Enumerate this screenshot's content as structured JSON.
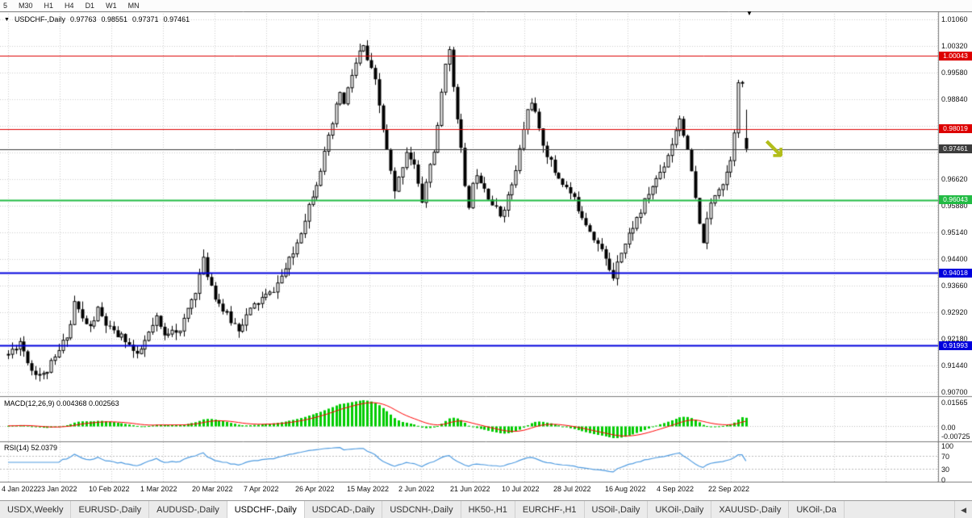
{
  "toolbar": {
    "timeframes": [
      "5",
      "M30",
      "H1",
      "H4",
      "D1",
      "W1",
      "MN"
    ]
  },
  "header": {
    "dropdown_icon": "▼",
    "symbol": "USDCHF-,Daily",
    "open": "0.97763",
    "high": "0.98551",
    "low": "0.97371",
    "close": "0.97461"
  },
  "main_pane": {
    "marker_icon": "▼",
    "arrow_icon": "↘",
    "arrow_color": "#b2bd1a"
  },
  "price_axis": {
    "labels": [
      "1.01060",
      "1.00320",
      "0.99580",
      "0.98840",
      "0.98100",
      "0.97360",
      "0.96620",
      "0.95880",
      "0.95140",
      "0.94400",
      "0.93660",
      "0.92920",
      "0.92180",
      "0.91440",
      "0.90700"
    ]
  },
  "levels": [
    {
      "price": "1.00043",
      "value": 1.00043,
      "color": "#dd0000",
      "width": 1
    },
    {
      "price": "0.98019",
      "value": 0.98019,
      "color": "#dd0000",
      "width": 1
    },
    {
      "price": "0.97461",
      "value": 0.97461,
      "color": "#3c3c3c",
      "width": 1
    },
    {
      "price": "0.96043",
      "value": 0.96043,
      "color": "#22bb44",
      "width": 2
    },
    {
      "price": "0.94018",
      "value": 0.94018,
      "color": "#0000dd",
      "width": 2
    },
    {
      "price": "0.91993",
      "value": 0.91993,
      "color": "#0000dd",
      "width": 2
    }
  ],
  "macd_pane": {
    "header": "MACD(12,26,9) 0.004368 0.002563",
    "axis_top": "0.01565",
    "axis_zero": "0.00",
    "axis_bottom": "-0.00725"
  },
  "rsi_pane": {
    "header": "RSI(14) 52.0379",
    "axis_labels": [
      "100",
      "70",
      "30",
      "0"
    ]
  },
  "date_axis": {
    "labels": [
      "4 Jan 2022",
      "23 Jan 2022",
      "10 Feb 2022",
      "1 Mar 2022",
      "20 Mar 2022",
      "7 Apr 2022",
      "26 Apr 2022",
      "15 May 2022",
      "2 Jun 2022",
      "21 Jun 2022",
      "10 Jul 2022",
      "28 Jul 2022",
      "16 Aug 2022",
      "4 Sep 2022",
      "22 Sep 2022"
    ]
  },
  "tabbar": {
    "tabs": [
      {
        "label": "USDX,Weekly",
        "active": false
      },
      {
        "label": "EURUSD-,Daily",
        "active": false
      },
      {
        "label": "AUDUSD-,Daily",
        "active": false
      },
      {
        "label": "USDCHF-,Daily",
        "active": true
      },
      {
        "label": "USDCAD-,Daily",
        "active": false
      },
      {
        "label": "USDCNH-,Daily",
        "active": false
      },
      {
        "label": "HK50-,H1",
        "active": false
      },
      {
        "label": "EURCHF-,H1",
        "active": false
      },
      {
        "label": "USOil-,Daily",
        "active": false
      },
      {
        "label": "UKOil-,Daily",
        "active": false
      },
      {
        "label": "XAUUSD-,Daily",
        "active": false
      },
      {
        "label": "UKOil-,Da",
        "active": false
      }
    ],
    "scroll_icon": "◀"
  },
  "chart_data": {
    "type": "candlestick",
    "symbol": "USDCHF",
    "timeframe": "Daily",
    "title": "USDCHF-,Daily",
    "x_tick_labels": [
      "4 Jan 2022",
      "23 Jan 2022",
      "10 Feb 2022",
      "1 Mar 2022",
      "20 Mar 2022",
      "7 Apr 2022",
      "26 Apr 2022",
      "15 May 2022",
      "2 Jun 2022",
      "21 Jun 2022",
      "10 Jul 2022",
      "28 Jul 2022",
      "16 Aug 2022",
      "4 Sep 2022",
      "22 Sep 2022"
    ],
    "price_axis_ticks": [
      1.0106,
      1.0032,
      0.9958,
      0.9884,
      0.981,
      0.9736,
      0.9662,
      0.9588,
      0.9514,
      0.944,
      0.9366,
      0.9292,
      0.9218,
      0.9144,
      0.907
    ],
    "ylim": [
      0.9068,
      1.0129
    ],
    "n_candles": 190,
    "last_candle": {
      "open": 0.97763,
      "high": 0.98551,
      "low": 0.97371,
      "close": 0.97461
    },
    "horizontal_levels": [
      1.00043,
      0.98019,
      0.97461,
      0.96043,
      0.94018,
      0.91993
    ],
    "price_path_anchors": [
      [
        0,
        0.9175
      ],
      [
        3,
        0.9212
      ],
      [
        6,
        0.9132
      ],
      [
        9,
        0.9116
      ],
      [
        12,
        0.9162
      ],
      [
        14,
        0.9206
      ],
      [
        16,
        0.9258
      ],
      [
        17,
        0.9322
      ],
      [
        19,
        0.9272
      ],
      [
        21,
        0.9248
      ],
      [
        23,
        0.9298
      ],
      [
        25,
        0.9258
      ],
      [
        27,
        0.9232
      ],
      [
        30,
        0.9218
      ],
      [
        33,
        0.9166
      ],
      [
        36,
        0.9232
      ],
      [
        38,
        0.9272
      ],
      [
        40,
        0.9224
      ],
      [
        42,
        0.9252
      ],
      [
        44,
        0.9234
      ],
      [
        46,
        0.93
      ],
      [
        48,
        0.9355
      ],
      [
        50,
        0.9435
      ],
      [
        51,
        0.9398
      ],
      [
        53,
        0.9338
      ],
      [
        55,
        0.9298
      ],
      [
        57,
        0.9268
      ],
      [
        59,
        0.9248
      ],
      [
        61,
        0.9282
      ],
      [
        63,
        0.931
      ],
      [
        65,
        0.933
      ],
      [
        67,
        0.9342
      ],
      [
        69,
        0.9372
      ],
      [
        71,
        0.9412
      ],
      [
        73,
        0.9455
      ],
      [
        75,
        0.952
      ],
      [
        77,
        0.959
      ],
      [
        79,
        0.9655
      ],
      [
        81,
        0.973
      ],
      [
        83,
        0.9815
      ],
      [
        85,
        0.9905
      ],
      [
        86,
        0.9868
      ],
      [
        88,
        0.9952
      ],
      [
        90,
        1.0012
      ],
      [
        91,
        1.0028
      ],
      [
        92,
        0.9992
      ],
      [
        94,
        0.993
      ],
      [
        96,
        0.98
      ],
      [
        98,
        0.968
      ],
      [
        99,
        0.9622
      ],
      [
        100,
        0.9662
      ],
      [
        102,
        0.9742
      ],
      [
        104,
        0.97
      ],
      [
        105,
        0.9642
      ],
      [
        106,
        0.9602
      ],
      [
        107,
        0.9652
      ],
      [
        108,
        0.9702
      ],
      [
        109,
        0.9742
      ],
      [
        110,
        0.9802
      ],
      [
        111,
        0.9902
      ],
      [
        112,
        0.9992
      ],
      [
        113,
        1.0012
      ],
      [
        114,
        0.9922
      ],
      [
        115,
        0.984
      ],
      [
        116,
        0.9742
      ],
      [
        117,
        0.9632
      ],
      [
        118,
        0.9592
      ],
      [
        119,
        0.9642
      ],
      [
        120,
        0.9682
      ],
      [
        122,
        0.9642
      ],
      [
        124,
        0.9592
      ],
      [
        126,
        0.9562
      ],
      [
        128,
        0.9612
      ],
      [
        130,
        0.9682
      ],
      [
        131,
        0.9742
      ],
      [
        132,
        0.9802
      ],
      [
        133,
        0.9852
      ],
      [
        134,
        0.9882
      ],
      [
        135,
        0.9842
      ],
      [
        136,
        0.9792
      ],
      [
        138,
        0.9732
      ],
      [
        140,
        0.9682
      ],
      [
        142,
        0.9652
      ],
      [
        144,
        0.9622
      ],
      [
        146,
        0.9582
      ],
      [
        148,
        0.9542
      ],
      [
        150,
        0.9502
      ],
      [
        152,
        0.9462
      ],
      [
        154,
        0.9412
      ],
      [
        155,
        0.9392
      ],
      [
        156,
        0.9442
      ],
      [
        158,
        0.9482
      ],
      [
        160,
        0.9532
      ],
      [
        162,
        0.9572
      ],
      [
        164,
        0.9622
      ],
      [
        166,
        0.9662
      ],
      [
        168,
        0.9702
      ],
      [
        170,
        0.9762
      ],
      [
        171,
        0.9802
      ],
      [
        172,
        0.9832
      ],
      [
        173,
        0.9792
      ],
      [
        174,
        0.9732
      ],
      [
        175,
        0.9682
      ],
      [
        176,
        0.9602
      ],
      [
        177,
        0.9532
      ],
      [
        178,
        0.9492
      ],
      [
        179,
        0.9542
      ],
      [
        180,
        0.9592
      ],
      [
        181,
        0.9622
      ],
      [
        182,
        0.9642
      ],
      [
        183,
        0.9652
      ],
      [
        184,
        0.9682
      ],
      [
        185,
        0.9722
      ],
      [
        186,
        0.9802
      ],
      [
        187,
        0.9922
      ],
      [
        188,
        0.9932
      ],
      [
        189,
        0.978
      ]
    ],
    "macd": {
      "fast": 12,
      "slow": 26,
      "signal": 9,
      "current_macd": 0.004368,
      "current_signal": 0.002563,
      "axis_range": [
        -0.00725,
        0.01565
      ]
    },
    "rsi": {
      "period": 14,
      "current": 52.0379,
      "levels": [
        70,
        30
      ],
      "axis_range": [
        0,
        100
      ]
    },
    "indicator_colors": {
      "macd_histogram": "#00cc00",
      "macd_signal": "#ff0000",
      "rsi_line": "#4f9be0"
    },
    "candle_colors": {
      "bull_fill": "#ffffff",
      "bear_fill": "#000000",
      "outline": "#000000"
    }
  }
}
